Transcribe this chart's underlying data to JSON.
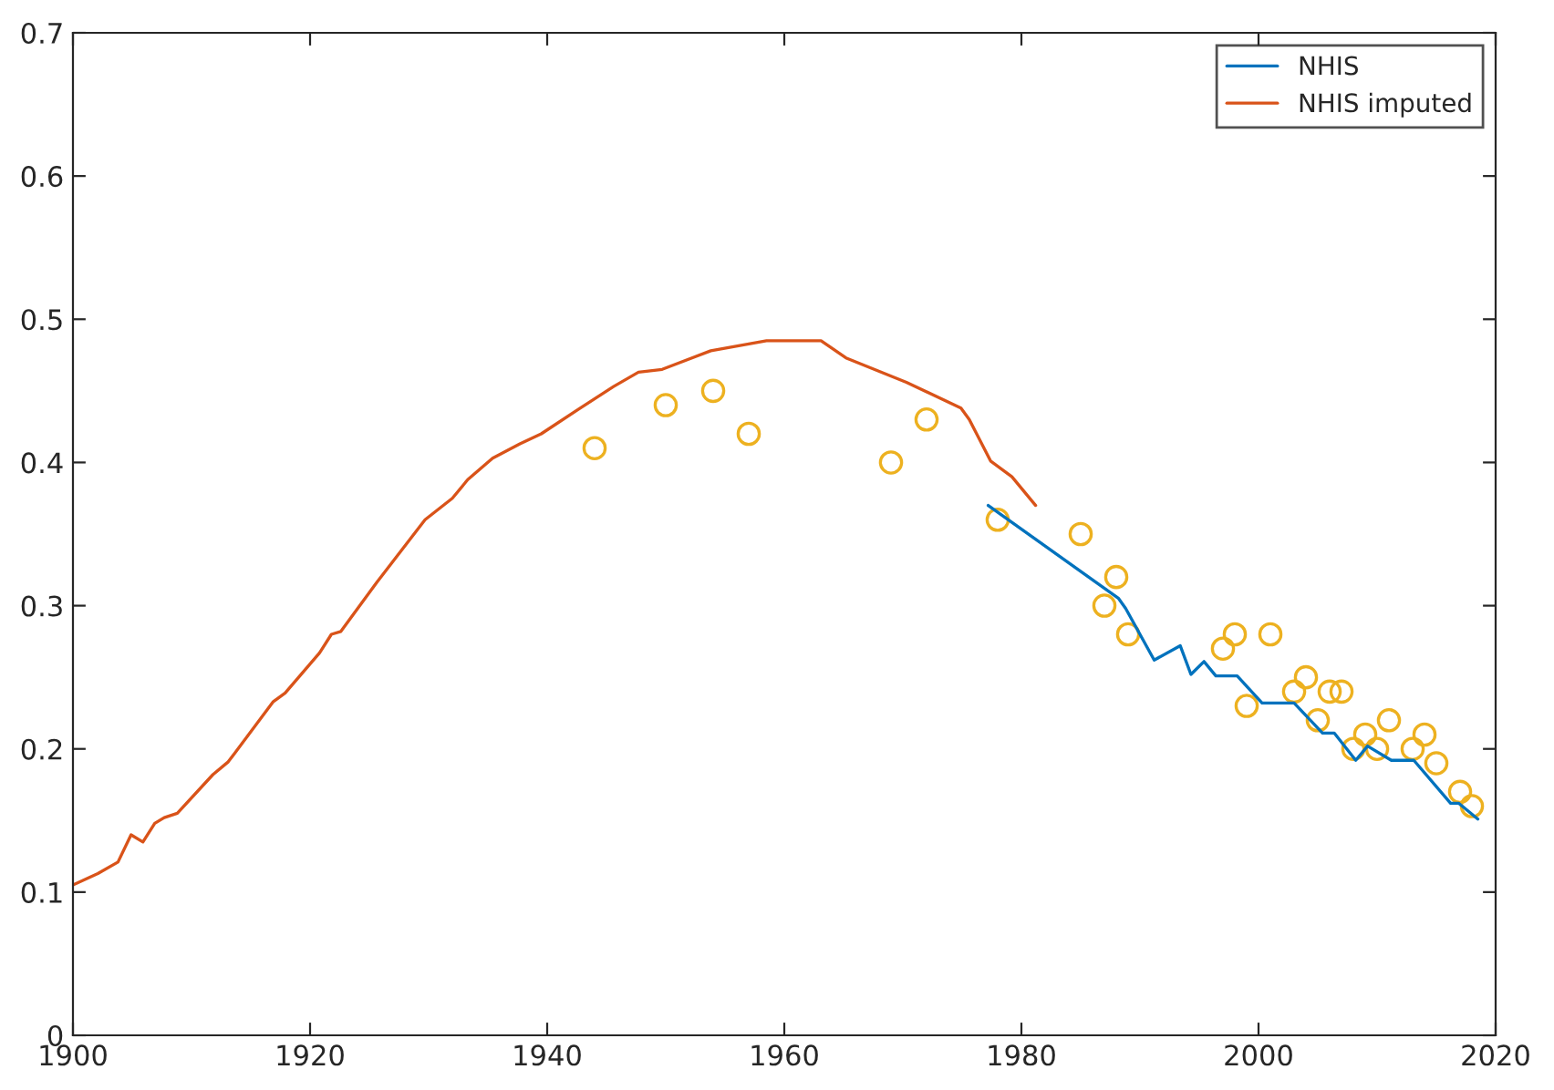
{
  "chart_data": {
    "type": "line",
    "xlim": [
      1900,
      2020
    ],
    "xticks": [
      1900,
      1920,
      1940,
      1960,
      1980,
      2000,
      2020
    ],
    "ylim": [
      0,
      0.7
    ],
    "yticks": [
      0,
      0.1,
      0.2,
      0.3,
      0.4,
      0.5,
      0.6,
      0.7
    ],
    "grid": false,
    "legend": "top right",
    "series": [
      {
        "name": "NHIS",
        "color": "#0072bd",
        "x": [
          1977.2,
          1988.2,
          1988.8,
          1991.2,
          1993.4,
          1994.3,
          1995.4,
          1996.4,
          1998.2,
          2000.3,
          2003,
          2005.4,
          2006.4,
          2008.2,
          2009.2,
          2011.2,
          2013.1,
          2016.2,
          2016.9,
          2018.5
        ],
        "values": [
          0.37,
          0.305,
          0.298,
          0.262,
          0.272,
          0.252,
          0.261,
          0.251,
          0.251,
          0.232,
          0.232,
          0.211,
          0.211,
          0.192,
          0.202,
          0.192,
          0.192,
          0.162,
          0.162,
          0.151
        ]
      },
      {
        "name": "NHIS imputed",
        "color": "#d95319",
        "x": [
          1900,
          1902.1,
          1903.8,
          1904.9,
          1905.9,
          1906.9,
          1907.7,
          1908.8,
          1911.8,
          1913.1,
          1916.9,
          1917.9,
          1920.8,
          1921.8,
          1922.6,
          1925.6,
          1929.7,
          1932,
          1933.3,
          1935.4,
          1937.7,
          1939.5,
          1942.6,
          1945.6,
          1947.7,
          1949.7,
          1953.8,
          1958.5,
          1961.5,
          1963.1,
          1965.2,
          1970.3,
          1974.9,
          1975.6,
          1977.4,
          1979.2,
          1981.2
        ],
        "values": [
          0.105,
          0.113,
          0.121,
          0.14,
          0.135,
          0.148,
          0.152,
          0.155,
          0.182,
          0.191,
          0.233,
          0.239,
          0.267,
          0.28,
          0.282,
          0.316,
          0.36,
          0.375,
          0.388,
          0.403,
          0.413,
          0.42,
          0.437,
          0.453,
          0.463,
          0.465,
          0.478,
          0.485,
          0.485,
          0.485,
          0.473,
          0.456,
          0.438,
          0.43,
          0.401,
          0.39,
          0.37
        ]
      },
      {
        "color": "#edb120",
        "type": "scatter",
        "marker": "circle",
        "x": [
          1944,
          1950,
          1954,
          1957,
          1969,
          1972,
          1978,
          1985,
          1987,
          1988,
          1989,
          1997,
          1998,
          1999,
          2001,
          2003,
          2004,
          2005,
          2006,
          2007,
          2008,
          2009,
          2010,
          2011,
          2013,
          2014,
          2015,
          2017,
          2018
        ],
        "values": [
          0.41,
          0.44,
          0.45,
          0.42,
          0.4,
          0.43,
          0.36,
          0.35,
          0.3,
          0.32,
          0.28,
          0.27,
          0.28,
          0.23,
          0.28,
          0.24,
          0.25,
          0.22,
          0.24,
          0.24,
          0.2,
          0.21,
          0.2,
          0.22,
          0.2,
          0.21,
          0.19,
          0.17,
          0.16
        ]
      }
    ]
  }
}
